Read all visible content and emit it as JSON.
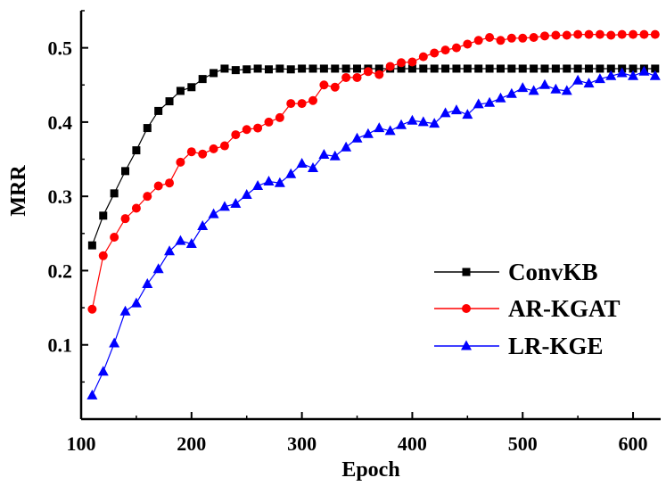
{
  "chart_data": {
    "type": "line",
    "title": "",
    "xlabel": "Epoch",
    "ylabel": "MRR",
    "xlim": [
      100,
      625
    ],
    "ylim": [
      0,
      0.55
    ],
    "xticks": [
      100,
      200,
      300,
      400,
      500,
      600
    ],
    "yticks": [
      0.1,
      0.2,
      0.3,
      0.4,
      0.5
    ],
    "xtick_labels": [
      "100",
      "200",
      "300",
      "400",
      "500",
      "600"
    ],
    "ytick_labels": [
      "0.1",
      "0.2",
      "0.3",
      "0.4",
      "0.5"
    ],
    "grid": false,
    "legend_position": "bottom-right",
    "x": [
      110,
      120,
      130,
      140,
      150,
      160,
      170,
      180,
      190,
      200,
      210,
      220,
      230,
      240,
      250,
      260,
      270,
      280,
      290,
      300,
      310,
      320,
      330,
      340,
      350,
      360,
      370,
      380,
      390,
      400,
      410,
      420,
      430,
      440,
      450,
      460,
      470,
      480,
      490,
      500,
      510,
      520,
      530,
      540,
      550,
      560,
      570,
      580,
      590,
      600,
      610,
      620
    ],
    "series": [
      {
        "name": "ConvKB",
        "color": "#000000",
        "marker": "square",
        "values": [
          0.234,
          0.274,
          0.304,
          0.334,
          0.362,
          0.392,
          0.415,
          0.428,
          0.442,
          0.447,
          0.458,
          0.466,
          0.472,
          0.47,
          0.471,
          0.472,
          0.471,
          0.472,
          0.471,
          0.472,
          0.472,
          0.472,
          0.472,
          0.472,
          0.472,
          0.472,
          0.472,
          0.472,
          0.472,
          0.472,
          0.472,
          0.472,
          0.472,
          0.472,
          0.472,
          0.472,
          0.472,
          0.472,
          0.472,
          0.472,
          0.472,
          0.472,
          0.472,
          0.472,
          0.472,
          0.472,
          0.472,
          0.472,
          0.472,
          0.472,
          0.472,
          0.472
        ]
      },
      {
        "name": "AR-KGAT",
        "color": "#ff0000",
        "marker": "circle",
        "values": [
          0.148,
          0.22,
          0.245,
          0.27,
          0.284,
          0.3,
          0.314,
          0.318,
          0.346,
          0.36,
          0.357,
          0.364,
          0.368,
          0.383,
          0.39,
          0.392,
          0.4,
          0.406,
          0.425,
          0.425,
          0.429,
          0.45,
          0.447,
          0.46,
          0.46,
          0.468,
          0.464,
          0.475,
          0.48,
          0.481,
          0.488,
          0.493,
          0.497,
          0.5,
          0.505,
          0.51,
          0.514,
          0.51,
          0.513,
          0.513,
          0.514,
          0.516,
          0.517,
          0.517,
          0.518,
          0.518,
          0.518,
          0.517,
          0.518,
          0.518,
          0.518,
          0.518
        ]
      },
      {
        "name": "LR-KGE",
        "color": "#0000ff",
        "marker": "triangle",
        "values": [
          0.032,
          0.064,
          0.102,
          0.145,
          0.156,
          0.182,
          0.202,
          0.226,
          0.24,
          0.236,
          0.26,
          0.276,
          0.286,
          0.29,
          0.302,
          0.314,
          0.32,
          0.318,
          0.33,
          0.344,
          0.338,
          0.356,
          0.354,
          0.366,
          0.378,
          0.384,
          0.392,
          0.388,
          0.396,
          0.402,
          0.4,
          0.398,
          0.412,
          0.416,
          0.41,
          0.424,
          0.426,
          0.432,
          0.438,
          0.446,
          0.442,
          0.45,
          0.444,
          0.442,
          0.456,
          0.452,
          0.458,
          0.462,
          0.466,
          0.462,
          0.468,
          0.462
        ]
      }
    ]
  }
}
